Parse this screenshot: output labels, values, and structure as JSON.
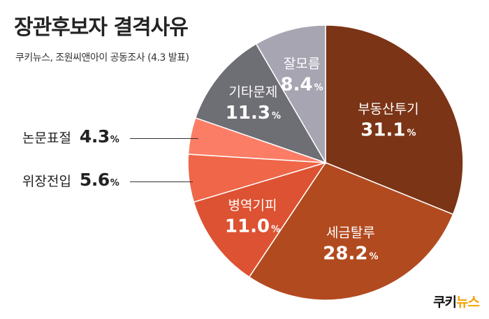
{
  "title": "장관후보자 결격사유",
  "subtitle": "쿠키뉴스, 조원씨앤아이 공동조사 (4.3 발표)",
  "logo": {
    "part1": "쿠키",
    "part2": "뉴스"
  },
  "chart_data": {
    "type": "pie",
    "start_angle_deg": 0,
    "direction": "clockwise",
    "slices": [
      {
        "label": "부동산투기",
        "value": 31.1,
        "display": "31.1",
        "color": "#7b3416"
      },
      {
        "label": "세금탈루",
        "value": 28.2,
        "display": "28.2",
        "color": "#b24a20"
      },
      {
        "label": "병역기피",
        "value": 11.0,
        "display": "11.0",
        "color": "#dd5232"
      },
      {
        "label": "위장전입",
        "value": 5.6,
        "display": "5.6",
        "color": "#ef6648"
      },
      {
        "label": "논문표절",
        "value": 4.3,
        "display": "4.3",
        "color": "#fb7d66"
      },
      {
        "label": "기타문제",
        "value": 11.3,
        "display": "11.3",
        "color": "#6e6e75"
      },
      {
        "label": "잘모름",
        "value": 8.4,
        "display": "8.4",
        "color": "#a8a5b3"
      }
    ],
    "percent_symbol": "%"
  }
}
